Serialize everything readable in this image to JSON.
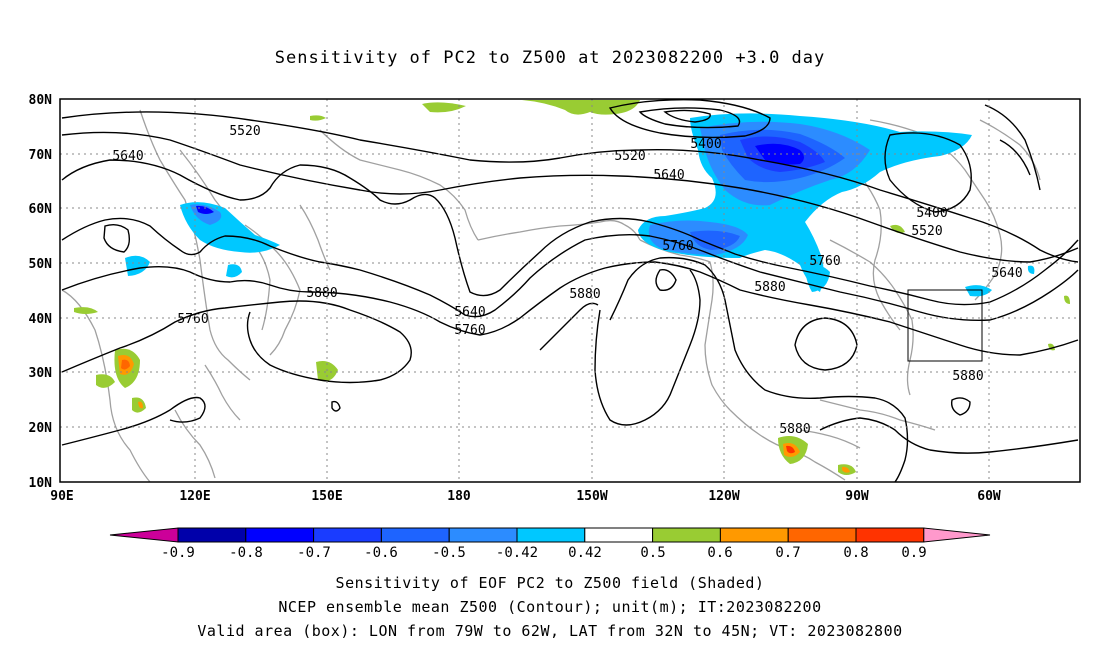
{
  "title": "Sensitivity of PC2 to Z500 at 2023082200 +3.0 day",
  "lat_labels": [
    "80N",
    "70N",
    "60N",
    "50N",
    "40N",
    "30N",
    "20N",
    "10N"
  ],
  "lon_labels": [
    "90E",
    "120E",
    "150E",
    "180",
    "150W",
    "120W",
    "90W",
    "60W"
  ],
  "contour_labels": [
    {
      "text": "5520"
    },
    {
      "text": "5640"
    },
    {
      "text": "5520"
    },
    {
      "text": "5400"
    },
    {
      "text": "5640"
    },
    {
      "text": "5400"
    },
    {
      "text": "5520"
    },
    {
      "text": "5760"
    },
    {
      "text": "5760"
    },
    {
      "text": "5640"
    },
    {
      "text": "5880"
    },
    {
      "text": "5880"
    },
    {
      "text": "5880"
    },
    {
      "text": "5640"
    },
    {
      "text": "5760"
    },
    {
      "text": "5760"
    },
    {
      "text": "5880"
    },
    {
      "text": "5880"
    }
  ],
  "colorbar": {
    "colors": [
      "#0000aa",
      "#0000ff",
      "#1a3cff",
      "#1e64ff",
      "#2c8cff",
      "#00c8ff",
      "#ffffff",
      "#99cc33",
      "#ff9900",
      "#ff6600",
      "#ff3300",
      "#ff0000"
    ],
    "left_tip_color": "#cc0099",
    "right_tip_color": "#ff99cc",
    "labels": [
      "-0.9",
      "-0.8",
      "-0.7",
      "-0.6",
      "-0.5",
      "-0.42",
      "0.42",
      "0.5",
      "0.6",
      "0.7",
      "0.8",
      "0.9"
    ]
  },
  "footer": {
    "line1": "Sensitivity of EOF PC2 to Z500 field (Shaded)",
    "line2": "NCEP ensemble mean Z500 (Contour); unit(m); IT:2023082200",
    "line3": "Valid area (box): LON from 79W to 62W, LAT from 32N to 45N; VT: 2023082800"
  }
}
